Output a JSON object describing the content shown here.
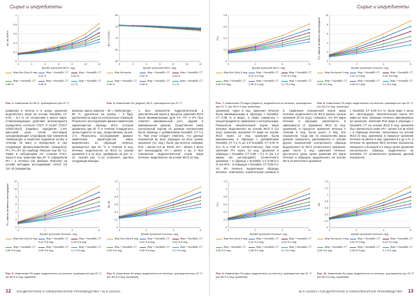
{
  "header": {
    "left_section": "Сырье и ингредиенты",
    "right_section": "Сырье и ингредиенты"
  },
  "figures": {
    "fig2": {
      "caption_num": "Рис. 2.",
      "caption_text": "Изменение АЧ ЖСЗ, хранящегося при 20 °С",
      "xlabel": "Время хранения ЖСЗ, нед.",
      "ylabel": "АЧ, мг КОН/г",
      "legend": [
        "Жир Кон (Кон) 6 нед.",
        "Жир + Nova6DL CT 0,02 %",
        "Жир + Nova6DL CT 0,04 %",
        "Жир + Nova6DL CT 0,06 %",
        "Жир + Nova6DL CT 0,08 %",
        "Жир + Nova6DL CT 0,1 %"
      ]
    },
    "fig4": {
      "caption_num": "Рис. 4.",
      "caption_text": "Изменение ИЧ (йодное) ЖСЗ, хранящегося при 20 °С",
      "xlabel": "Время хранения ЖСЗ, нед.",
      "ylabel": "ИЧ, г I2/100 г",
      "legend": [
        "Жир Контроль",
        "Жир + Nova6DL CT 0,02 %",
        "Жир + Nova6DL CT 0,04 %",
        "Жир + Nova6DL CT 0,06 %",
        "Жир + Nova6DL CT 0,08 %",
        "Жир + Nova6DL CT 0,1 %"
      ]
    },
    "fig5": {
      "caption_num": "Рис. 5.",
      "caption_text": "Изменение ПЧ жира, выделенного из печенья, хранящегося при 20 °С (а) ЖСЗ 6 нед. хранения",
      "xlabel": "Время хранения печенья, нед.",
      "ylabel": "ПЧ, ммоль активного кислорода/кг",
      "legend": [
        "Жир Кон (Кон) 6 нед.",
        "Жир + Nova6DL CT 0,02 % 6 нед.",
        "Жир + Nova6DL CT 0,04 % 6 нед.",
        "Жир + Nova6DL CT 0,06 % 6 нед.",
        "Жир + Nova6DL CT 0,08 % 6 нед.",
        "Жир + Nova6DL CT 0,1 % 6 нед."
      ]
    },
    "fig6": {
      "caption_num": "Рис. 6.",
      "caption_text": "Изменение АЧ жира, выделенного из печенья, хранящегося при 20 °С (на ЖСЗ 6 нед. хранения)",
      "xlabel": "Время хранения печенья, нед.",
      "ylabel": "АЧ, мг",
      "legend": [
        "Жир Кон (Кон) 6 нед.",
        "Жир + Nova6DL CT 0,02 % 6 нед.",
        "Жир + Nova6DL CT 0,04 % 6 нед.",
        "Жир + Nova6DL CT 0,06 % 6 нед.",
        "Жир + Nova6DL CT 0,08 % 6 нед.",
        "Жир + Nova6DL CT 0,1 % 6 нед."
      ]
    },
    "fig7": {
      "caption_num": "Рис. 7.",
      "caption_text": "Изменение ПЧ жира (йодного), выделенного из печенья, хранящегося при 20 °С (на ЖСЗ 0 нед. хранения)",
      "xlabel": "Время хранения ЖСЗ, нед.",
      "ylabel": "ПЧ",
      "legend": [
        "Жир Кон (Кон) 6 нед.",
        "Жир + Nova6DL CT 0,02 % 0 нед.",
        "Жир + Nova6DL CT 0,04 % 0 нед.",
        "Жир + Nova6DL CT 0,06 % 0 нед.",
        "Жир + Nova6DL CT 0,08 % 0 нед.",
        "Жир + Nova6DL CT 0,1 % 0 нед."
      ]
    },
    "fig8": {
      "caption_num": "Рис. 8.",
      "caption_text": "Изменение ПЧ жира, выделенного из печенья, хранящегося при 20 °С (на ЖСЗ 6 нед. хранения)",
      "xlabel": "Время хранения печенья, нед.",
      "ylabel": "ПЧ, ммоль активного кислорода/кг",
      "legend": [
        "Жир Контроль 0 нед.",
        "Жир + Nova6DL CT 0,02 % 0 нед.",
        "Жир + Nova6DL CT 0,04 % 0 нед.",
        "Жир + Nova6DL CT 0,06 % 0 нед.",
        "Жир + Nova6DL CT 0,08 % 0 нед.",
        "Жир + Nova6DL CT 0,1 % 0 нед."
      ]
    },
    "fig9": {
      "caption_num": "Рис. 9.",
      "caption_text": "Изменение ПЧ жира, выделенного из печенья, хранящегося при 20 °С (на ЖСЗ 0 нед. хранения)",
      "xlabel": "Время хранения печенья, нед.",
      "ylabel": "ПЧ",
      "legend": [
        "Жир Кон (Кон) 0 нед.",
        "Жир + Nova6DL CT 0,02 % 0 нед.",
        "Жир + Nova6DL CT 0,04 % 0 нед.",
        "Жир + Nova6DL CT 0,06 % 0 нед.",
        "Жир + Nova6DL CT 0,08 % 0 нед.",
        "Жир + Nova6DL CT 0,1 % 0 нед."
      ]
    },
    "fig10": {
      "caption_num": "Рис. 10.",
      "caption_text": "Изменение АЧ жира, выделенного из печенья, хранящегося при 20 °С (на ЖСЗ 6 нед. хранения)",
      "xlabel": "Время хранения печенья, нед.",
      "ylabel": "АЧ",
      "legend": [
        "Жир Контроль 0 нед.",
        "Жир + Nova6DL CT 0,02 % 0 нед.",
        "Жир + Nova6DL CT 0,04 % 0 нед.",
        "Жир + Nova6DL CT 0,06 % 0 нед.",
        "Жир + Nova6DL CT 0,08 % 0 нед.",
        "Жир + Nova6DL CT 0,1 % 0 нед."
      ]
    }
  },
  "series_colors": [
    "#e8a33d",
    "#3a7bd5",
    "#8b2e4a",
    "#4caf50",
    "#7e57c2",
    "#26a6c4"
  ],
  "text": {
    "left_col1": "(хамкали) в печени и в конце хранения выделенного жира на основе Nova6DL CT 0,02 – 0,1 % по отношению к массе жира. Стабилизирующее действие антиоксиданта определяли согласно ГОСТ Р 51487 (ГОСТ 31933-2012) (надежно определяя 1,5% массовой доли солей, настоящие сульфатирующие хлороформ при комнатной температуре, в наиболее надежном хлобы и течении 15 мин) и определяли в них следующие физико-химические показатели: ПЧ, АЧ, ИЧ (по прибору Пиксели при 90 °С). Также в лаборатории АО «Анализ РЧС» через 6 нед. хранения при 20 °С определяли ИЧ – в печенье (на приборе Пиксели) на основе методики исследования АОСS Cd 12с-16 (параметры",
    "left_col2": "анализа: масса навески – 30 г, температура – 90 °С, удаленное на оценку – 6 бар), удалением на парк 12 контрольных образцов. Результаты исследования физико-химических характеристик образца ЖСЗ, которые хранились при 20 °С в течение стандартного срока годности 12 нед., представлены на рис. 1–4. Результаты исследования физико-химических характеристик жира, выделенного из образцов печенья, хранящегося при 20 °С в течение 6 нед. печенья, выделенного из ЖСЗ со сроком хранения 0 и 12 нед., приведены на рис. 5–14. Анализ рис. 1–14 позволяет сделать следующие выводы:",
    "left_col3": "1. Все показатели гидролитической и окислительной порчи в процессе хранения ЖСЗ были минимальными (для КЧ, ПЧ и ИЧ был отмечен минимальный рост, задний в минимальном уровне). Существенно ниже контрольной партии по данным показателям были образцы с добавлением Nova6DL CT 0,1 %. При этом следует отметить, что данные показатели во всех образцах на всех сроках хранения (12 нед.) были достаточно низкими: КЧ4 – менее 0,6 мг КОН/г, ИЧ – менее 1 моль акт. кислорода/кг, АЧ – менее 1 ед. 2. Все показатели гидролитической порчи жира печенья, выделенного на основе ЖСЗ 10 нед.",
    "right_col1": "хранения), через 6 нед. хранения печенья были минимальными в образцах с Nova6DL CT 0,08 % и выше, а также снижалось с концентрацией по сравнению с контрольными. Показатели окислительной порчи жира печенья, выделенного на основе ЖСЗ 0 (12 нед.) хранения, значения АЧ жира на основе ЖСЗ через 12 нед. хранения были максимальны в образцах с добавлением Nova6DL CT 0,1 % до 2,9 Nova6DL CT 0,06 % (0,1 % и 0,08 % соответственно). При этом значения ПЧ через 12 нед. хранения в образцах с Nova6DL CT 0,08 – 0,1 % (на 1,2 ммоль акт. кислорода/кг). 12-месячного хранения – в образце с Nova6DL CT 0,08–0,1 % (на ИЧ) – в образцах с Nova6DL CT 0,06–0,1 %). ИЧ печенья, выделенные образцы печенья, отмечались значительная разница в образцах с Nova6DL CT 0,02 и 0,04 %.",
    "right_col2": "3. Сравнение показателей порчи жира печенья, выделенного из ЖСЗ разных сроков хранения (0–12 нед.), показало, что ИЧ жира печенья в образцах увеличилось в зависимости от (времени) ЖСЗ (0 нед. хранения), в процессе хранения печенья к течении 6 нед. были около 3 нед. все показатели, тогда как по показателям жира данный показатель увеличивался в основе других показателей контрольного образца выделенного из ЖСЗ 12-месячного хранения, даже после 2 нед. хранения печенья. Достаточно сроку срока хранения ИЧ жира печенья в образцах, выделенного на основе ЖСЗ 12-месячного хранения",
    "right_col3": "с Nova6DL CT 0,06–0,1 %, была ниже 1 моль акт. кислорода/кг. Окислительная порча ИЧ жира во всех образцах печенья принимаемых на хранение, значения КЧ4 жира в образцах с Nova6DL CT на основе ЖСЗ 0 нед. хранения был значительно ниже ИЧ – менее 0,6 мг КОН/г, в образцах печенья, полученных на основе ЖСЗ (0 нед. хранения), в процессе хранения печенья не менее 6 нед. хранения в 3 до 4 %, а печенья на хранение ЖСЗ печенья показатель смещался к большей и к концу срока хранения контрольного образца, выделенного из Nova6DL CT 12-месячного хранения, данный показатель"
  },
  "footer": {
    "left_num": "12",
    "left_text": "КОНДИТЕРСКОЕ И ХЛЕБОПЕКАРНОЕ ПРОИЗВОДСТВО • № 9–10/2021",
    "right_num": "13",
    "right_text": "№ 9–10/2021 • КОНДИТЕРСКОЕ И ХЛЕБОПЕКАРНОЕ ПРОИЗВОДСТВО"
  },
  "chart_data": [
    {
      "type": "line",
      "id": "fig2",
      "x": [
        0,
        2,
        4,
        6,
        8,
        10,
        12
      ],
      "ylim": [
        0,
        1.0
      ],
      "yticks": [
        0,
        0.2,
        0.4,
        0.6,
        0.8,
        1.0
      ],
      "series": [
        {
          "name": "Жир Кон (Кон) 6 нед.",
          "values": [
            0.18,
            0.22,
            0.28,
            0.35,
            0.45,
            0.6,
            0.82
          ]
        },
        {
          "name": "Жир + Nova6DL CT 0,02 %",
          "values": [
            0.17,
            0.21,
            0.26,
            0.32,
            0.4,
            0.52,
            0.72
          ]
        },
        {
          "name": "Жир + Nova6DL CT 0,04 %",
          "values": [
            0.17,
            0.2,
            0.24,
            0.3,
            0.37,
            0.46,
            0.62
          ]
        },
        {
          "name": "Жир + Nova6DL CT 0,06 %",
          "values": [
            0.16,
            0.19,
            0.23,
            0.28,
            0.34,
            0.42,
            0.55
          ]
        },
        {
          "name": "Жир + Nova6DL CT 0,08 %",
          "values": [
            0.16,
            0.18,
            0.21,
            0.26,
            0.31,
            0.38,
            0.48
          ]
        },
        {
          "name": "Жир + Nova6DL CT 0,1 %",
          "values": [
            0.15,
            0.17,
            0.2,
            0.24,
            0.28,
            0.34,
            0.42
          ]
        }
      ]
    },
    {
      "type": "line",
      "id": "fig4",
      "x": [
        0,
        2,
        4,
        6,
        8,
        10,
        12
      ],
      "ylim": [
        60,
        80
      ],
      "yticks": [
        60,
        65,
        70,
        75,
        80
      ],
      "series": [
        {
          "name": "Жир Контроль",
          "values": [
            75.5,
            75.3,
            75.0,
            74.6,
            74.2,
            73.8,
            73.2
          ]
        },
        {
          "name": "Жир + Nova6DL CT 0,02 %",
          "values": [
            75.6,
            75.4,
            75.1,
            74.8,
            74.4,
            74.0,
            73.6
          ]
        },
        {
          "name": "Жир + Nova6DL CT 0,04 %",
          "values": [
            75.6,
            75.5,
            75.2,
            74.9,
            74.6,
            74.2,
            73.9
          ]
        },
        {
          "name": "Жир + Nova6DL CT 0,06 %",
          "values": [
            75.7,
            75.5,
            75.3,
            75.0,
            74.7,
            74.4,
            74.1
          ]
        },
        {
          "name": "Жир + Nova6DL CT 0,08 %",
          "values": [
            75.7,
            75.6,
            75.4,
            75.1,
            74.9,
            74.6,
            74.3
          ]
        },
        {
          "name": "Жир + Nova6DL CT 0,1 %",
          "values": [
            75.8,
            75.6,
            75.5,
            75.3,
            75.0,
            74.8,
            74.5
          ]
        }
      ]
    },
    {
      "type": "line",
      "id": "fig7",
      "x": [
        0,
        2,
        4,
        6
      ],
      "ylim": [
        0,
        0.8
      ],
      "yticks": [
        0,
        0.2,
        0.4,
        0.6,
        0.8
      ],
      "series": [
        {
          "name": "Жир Кон (Кон) 6 нед.",
          "values": [
            0.2,
            0.3,
            0.45,
            0.65
          ]
        },
        {
          "name": "Жир + Nova6DL CT 0,02 % 0 нед.",
          "values": [
            0.18,
            0.27,
            0.4,
            0.56
          ]
        },
        {
          "name": "Жир + Nova6DL CT 0,04 % 0 нед.",
          "values": [
            0.17,
            0.25,
            0.36,
            0.5
          ]
        },
        {
          "name": "Жир + Nova6DL CT 0,06 % 0 нед.",
          "values": [
            0.16,
            0.23,
            0.32,
            0.44
          ]
        },
        {
          "name": "Жир + Nova6DL CT 0,08 % 0 нед.",
          "values": [
            0.15,
            0.21,
            0.29,
            0.39
          ]
        },
        {
          "name": "Жир + Nova6DL CT 0,1 % 0 нед.",
          "values": [
            0.14,
            0.19,
            0.26,
            0.34
          ]
        }
      ]
    },
    {
      "type": "line",
      "id": "fig8",
      "x": [
        0,
        2,
        4,
        6
      ],
      "ylim": [
        0,
        10
      ],
      "yticks": [
        0,
        2,
        4,
        6,
        8,
        10
      ],
      "series": [
        {
          "name": "Жир Контроль 0 нед.",
          "values": [
            1.5,
            3.5,
            6.0,
            8.8
          ]
        },
        {
          "name": "Жир + Nova6DL CT 0,02 % 0 нед.",
          "values": [
            1.4,
            3.0,
            5.2,
            7.6
          ]
        },
        {
          "name": "Жир + Nova6DL CT 0,04 % 0 нед.",
          "values": [
            1.3,
            2.6,
            4.5,
            6.5
          ]
        },
        {
          "name": "Жир + Nova6DL CT 0,06 % 0 нед.",
          "values": [
            1.2,
            2.3,
            3.8,
            5.4
          ]
        },
        {
          "name": "Жир + Nova6DL CT 0,08 % 0 нед.",
          "values": [
            1.1,
            2.0,
            3.2,
            4.5
          ]
        },
        {
          "name": "Жир + Nova6DL CT 0,1 % 0 нед.",
          "values": [
            1.0,
            1.7,
            2.6,
            3.6
          ]
        }
      ]
    },
    {
      "type": "line",
      "id": "fig5",
      "x": [
        0,
        2,
        4,
        6
      ],
      "ylim": [
        0,
        12
      ],
      "yticks": [
        0,
        2,
        4,
        6,
        8,
        10,
        12
      ],
      "series": [
        {
          "name": "Жир Кон (Кон) 6 нед.",
          "values": [
            1.5,
            4.0,
            7.2,
            10.8
          ]
        },
        {
          "name": "Жир + Nova6DL CT 0,02 % 6 нед.",
          "values": [
            1.4,
            3.5,
            6.2,
            9.2
          ]
        },
        {
          "name": "Жир + Nova6DL CT 0,04 % 6 нед.",
          "values": [
            1.3,
            3.1,
            5.4,
            7.9
          ]
        },
        {
          "name": "Жир + Nova6DL CT 0,06 % 6 нед.",
          "values": [
            1.2,
            2.7,
            4.6,
            6.7
          ]
        },
        {
          "name": "Жир + Nova6DL CT 0,08 % 6 нед.",
          "values": [
            1.1,
            2.3,
            3.9,
            5.6
          ]
        },
        {
          "name": "Жир + Nova6DL CT 0,1 % 6 нед.",
          "values": [
            1.0,
            2.0,
            3.2,
            4.6
          ]
        }
      ]
    },
    {
      "type": "line",
      "id": "fig6",
      "x": [
        0,
        2,
        4,
        6
      ],
      "ylim": [
        0,
        1.2
      ],
      "yticks": [
        0,
        0.2,
        0.4,
        0.6,
        0.8,
        1.0,
        1.2
      ],
      "series": [
        {
          "name": "Жир Кон (Кон) 6 нед.",
          "values": [
            0.3,
            0.5,
            0.75,
            1.05
          ]
        },
        {
          "name": "Жир + Nova6DL CT 0,02 % 6 нед.",
          "values": [
            0.28,
            0.45,
            0.66,
            0.92
          ]
        },
        {
          "name": "Жир + Nova6DL CT 0,04 % 6 нед.",
          "values": [
            0.27,
            0.41,
            0.59,
            0.8
          ]
        },
        {
          "name": "Жир + Nova6DL CT 0,06 % 6 нед.",
          "values": [
            0.26,
            0.38,
            0.53,
            0.7
          ]
        },
        {
          "name": "Жир + Nova6DL CT 0,08 % 6 нед.",
          "values": [
            0.25,
            0.35,
            0.47,
            0.61
          ]
        },
        {
          "name": "Жир + Nova6DL CT 0,1 % 6 нед.",
          "values": [
            0.24,
            0.32,
            0.42,
            0.53
          ]
        }
      ]
    },
    {
      "type": "line",
      "id": "fig9",
      "x": [
        0,
        2,
        4,
        6
      ],
      "ylim": [
        0,
        1.2
      ],
      "yticks": [
        0,
        0.2,
        0.4,
        0.6,
        0.8,
        1.0,
        1.2
      ],
      "series": [
        {
          "name": "Жир Кон (Кон) 0 нед.",
          "values": [
            0.25,
            0.45,
            0.72,
            1.02
          ]
        },
        {
          "name": "Жир + Nova6DL CT 0,02 % 0 нед.",
          "values": [
            0.24,
            0.41,
            0.63,
            0.88
          ]
        },
        {
          "name": "Жир + Nova6DL CT 0,04 % 0 нед.",
          "values": [
            0.23,
            0.37,
            0.56,
            0.77
          ]
        },
        {
          "name": "Жир + Nova6DL CT 0,06 % 0 нед.",
          "values": [
            0.22,
            0.34,
            0.5,
            0.67
          ]
        },
        {
          "name": "Жир + Nova6DL CT 0,08 % 0 нед.",
          "values": [
            0.21,
            0.31,
            0.44,
            0.58
          ]
        },
        {
          "name": "Жир + Nova6DL CT 0,1 % 0 нед.",
          "values": [
            0.2,
            0.28,
            0.39,
            0.5
          ]
        }
      ]
    },
    {
      "type": "line",
      "id": "fig10",
      "x": [
        0,
        2,
        4,
        6
      ],
      "ylim": [
        0,
        1.4
      ],
      "yticks": [
        0,
        0.2,
        0.4,
        0.6,
        0.8,
        1.0,
        1.2,
        1.4
      ],
      "series": [
        {
          "name": "Жир Контроль 0 нед.",
          "values": [
            0.3,
            0.55,
            0.85,
            1.25
          ]
        },
        {
          "name": "Жир + Nova6DL CT 0,02 % 0 нед.",
          "values": [
            0.29,
            0.5,
            0.76,
            1.08
          ]
        },
        {
          "name": "Жир + Nova6DL CT 0,04 % 0 нед.",
          "values": [
            0.28,
            0.46,
            0.68,
            0.94
          ]
        },
        {
          "name": "Жир + Nova6DL CT 0,06 % 0 нед.",
          "values": [
            0.27,
            0.42,
            0.61,
            0.82
          ]
        },
        {
          "name": "Жир + Nova6DL CT 0,08 % 0 нед.",
          "values": [
            0.26,
            0.39,
            0.55,
            0.72
          ]
        },
        {
          "name": "Жир + Nova6DL CT 0,1 % 0 нед.",
          "values": [
            0.25,
            0.36,
            0.49,
            0.63
          ]
        }
      ]
    }
  ]
}
